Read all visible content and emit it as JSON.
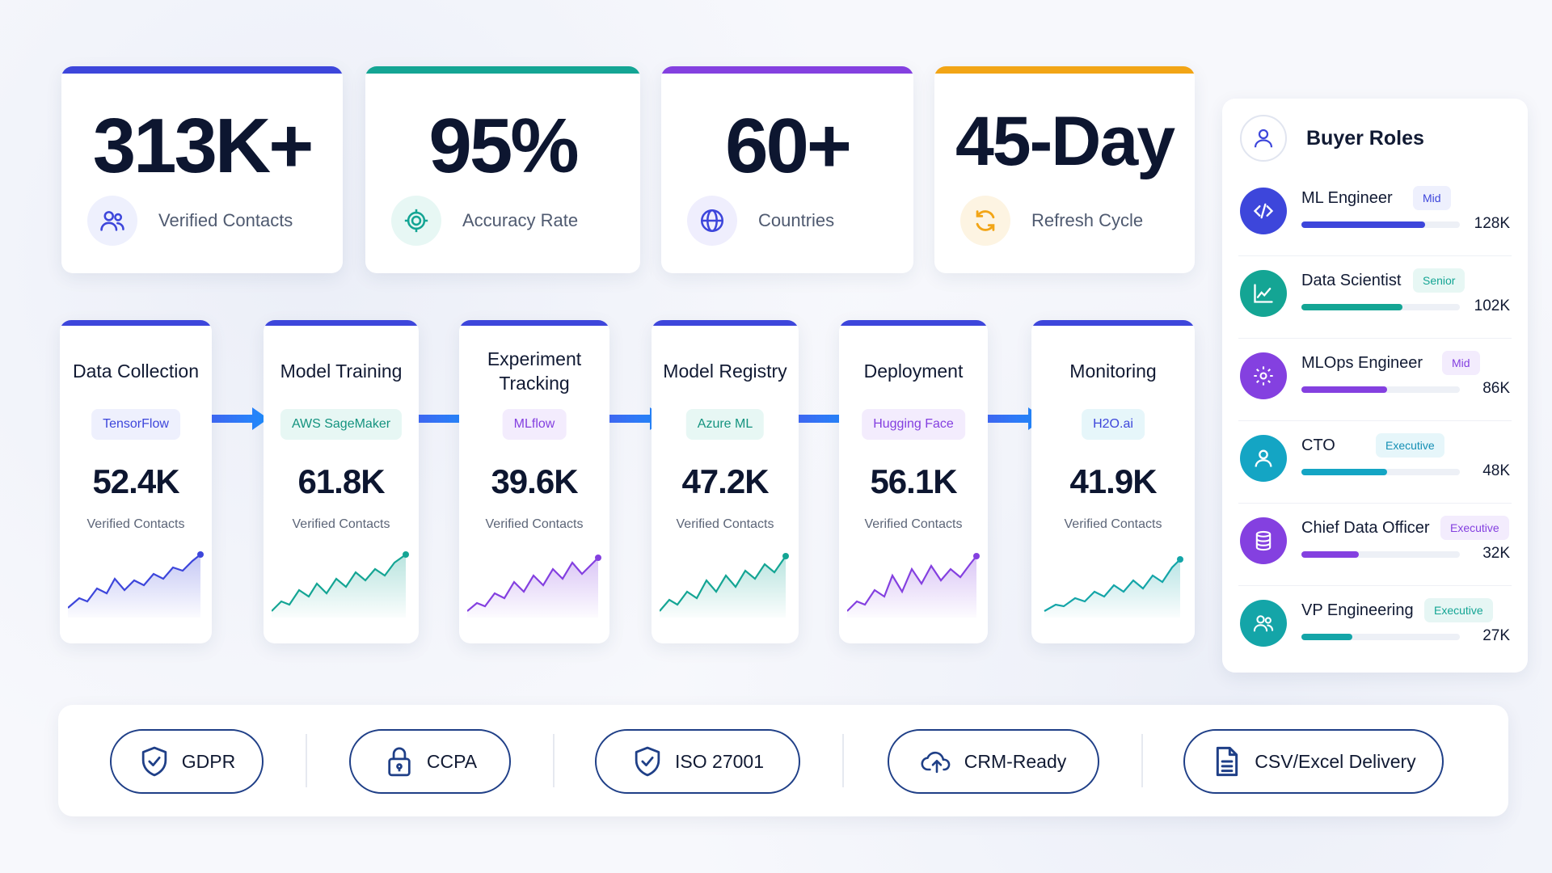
{
  "stats": [
    {
      "value": "313K+",
      "label": "Verified Contacts",
      "icon": "users-icon",
      "accent": "#3d46db"
    },
    {
      "value": "95%",
      "label": "Accuracy Rate",
      "icon": "target-icon",
      "accent": "#14a594"
    },
    {
      "value": "60+",
      "label": "Countries",
      "icon": "globe-icon",
      "accent": "#8440e0"
    },
    {
      "value": "45-Day",
      "label": "Refresh Cycle",
      "icon": "refresh-icon",
      "accent": "#f2a516"
    }
  ],
  "pipeline": [
    {
      "title": "Data Collection",
      "tool": "TensorFlow",
      "count": "52.4K",
      "label": "Verified Contacts",
      "tone": "blue"
    },
    {
      "title": "Model Training",
      "tool": "AWS SageMaker",
      "count": "61.8K",
      "label": "Verified Contacts",
      "tone": "teal"
    },
    {
      "title": "Experiment Tracking",
      "tool": "MLflow",
      "count": "39.6K",
      "label": "Verified Contacts",
      "tone": "purple"
    },
    {
      "title": "Model Registry",
      "tool": "Azure ML",
      "count": "47.2K",
      "label": "Verified Contacts",
      "tone": "teal"
    },
    {
      "title": "Deployment",
      "tool": "Hugging Face",
      "count": "56.1K",
      "label": "Verified Contacts",
      "tone": "purple"
    },
    {
      "title": "Monitoring",
      "tool": "H2O.ai",
      "count": "41.9K",
      "label": "Verified Contacts",
      "tone": "teal"
    }
  ],
  "roles": {
    "title": "Buyer Roles",
    "header_icon": "user-icon",
    "items": [
      {
        "name": "ML Engineer",
        "level": "Mid",
        "count": "128K",
        "share": 0.78,
        "icon": "code-icon",
        "color": "#3d46db",
        "badge_bg": "#eef0fd",
        "badge_fg": "#3d46db"
      },
      {
        "name": "Data Scientist",
        "level": "Senior",
        "count": "102K",
        "share": 0.64,
        "icon": "chart-line-icon",
        "color": "#14a594",
        "badge_bg": "#e7f7f4",
        "badge_fg": "#14a594"
      },
      {
        "name": "MLOps Engineer",
        "level": "Mid",
        "count": "86K",
        "share": 0.54,
        "icon": "gear-icon",
        "color": "#8440e0",
        "badge_bg": "#f3ecfd",
        "badge_fg": "#8440e0"
      },
      {
        "name": "CTO",
        "level": "Executive",
        "count": "48K",
        "share": 0.54,
        "icon": "user-icon",
        "color": "#14a5c4",
        "badge_bg": "#e6f6fa",
        "badge_fg": "#148fb4"
      },
      {
        "name": "Chief Data Officer",
        "level": "Executive",
        "count": "32K",
        "share": 0.36,
        "icon": "database-icon",
        "color": "#8440e0",
        "badge_bg": "#f3ecfd",
        "badge_fg": "#8440e0"
      },
      {
        "name": "VP Engineering",
        "level": "Executive",
        "count": "27K",
        "share": 0.32,
        "icon": "users-icon",
        "color": "#14a5a8",
        "badge_bg": "#e6f6f4",
        "badge_fg": "#14a594"
      }
    ]
  },
  "compliance": [
    {
      "label": "GDPR",
      "icon": "shield-check-icon"
    },
    {
      "label": "CCPA",
      "icon": "lock-icon"
    },
    {
      "label": "ISO 27001",
      "icon": "shield-check-icon"
    },
    {
      "label": "CRM-Ready",
      "icon": "cloud-upload-icon"
    },
    {
      "label": "CSV/Excel Delivery",
      "icon": "document-icon"
    }
  ],
  "colors": {
    "navy": "#1f3f87",
    "blue": "#3d46db",
    "teal": "#14a594",
    "purple": "#8440e0",
    "orange": "#f2a516"
  }
}
